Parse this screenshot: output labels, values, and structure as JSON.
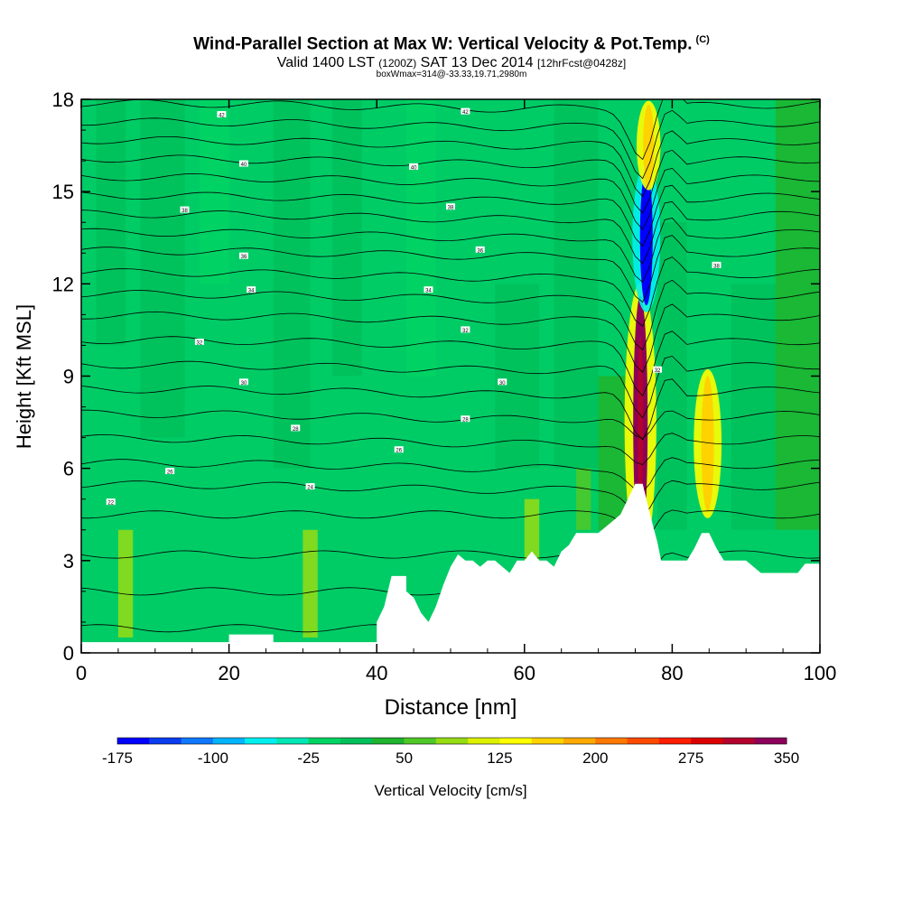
{
  "chart_data": {
    "type": "heatmap",
    "title": "Wind-Parallel Section at Max W: Vertical Velocity & Pot.Temp.",
    "title_mark": "(C)",
    "subtitle_main": "Valid 1400 LST",
    "subtitle_z": "(1200Z)",
    "subtitle_date": "SAT 13 Dec 2014",
    "subtitle_fcst": "[12hrFcst@0428z]",
    "subsubtitle": "boxWmax=314@-33.33,19.71,2980m",
    "xlabel": "Distance [nm]",
    "ylabel": "Height [Kft MSL]",
    "xlim": [
      0,
      100
    ],
    "ylim": [
      0,
      18
    ],
    "xticks": [
      "0",
      "20",
      "40",
      "60",
      "80",
      "100"
    ],
    "yticks": [
      "0",
      "3",
      "6",
      "9",
      "12",
      "15",
      "18"
    ],
    "colorbar": {
      "label": "Vertical Velocity [cm/s]",
      "tick_labels": [
        "-175",
        "-100",
        "-25",
        "50",
        "125",
        "200",
        "275",
        "350"
      ],
      "colors": [
        "#0000ff",
        "#0a3cf0",
        "#0f78ff",
        "#00b4ff",
        "#00f0f0",
        "#00e6b4",
        "#00d464",
        "#00c05a",
        "#1eb42d",
        "#50c828",
        "#96dc14",
        "#dcf000",
        "#ffff00",
        "#ffd200",
        "#ffaa00",
        "#ff7800",
        "#ff4b00",
        "#ff1e00",
        "#dc0000",
        "#b4002d",
        "#8c005a"
      ]
    },
    "background_color": "#00cc66",
    "terrain": [
      [
        0,
        0.35
      ],
      [
        10,
        0.35
      ],
      [
        20,
        0.35
      ],
      [
        20,
        0.6
      ],
      [
        26,
        0.6
      ],
      [
        26,
        0.35
      ],
      [
        40,
        0.35
      ],
      [
        40,
        1.0
      ],
      [
        41,
        1.5
      ],
      [
        42,
        2.5
      ],
      [
        44,
        2.5
      ],
      [
        44,
        2.0
      ],
      [
        45,
        1.8
      ],
      [
        46,
        1.3
      ],
      [
        47,
        1.0
      ],
      [
        48,
        1.5
      ],
      [
        49,
        2.2
      ],
      [
        50,
        2.8
      ],
      [
        51,
        3.2
      ],
      [
        52,
        3.0
      ],
      [
        53,
        3.0
      ],
      [
        54,
        2.8
      ],
      [
        55,
        3.0
      ],
      [
        56,
        3.0
      ],
      [
        57,
        2.8
      ],
      [
        58,
        2.6
      ],
      [
        59,
        3.0
      ],
      [
        60,
        3.0
      ],
      [
        61,
        3.3
      ],
      [
        62,
        3.0
      ],
      [
        63,
        3.0
      ],
      [
        64,
        2.8
      ],
      [
        65,
        3.3
      ],
      [
        66,
        3.5
      ],
      [
        67,
        3.9
      ],
      [
        70,
        3.9
      ],
      [
        72,
        4.3
      ],
      [
        73,
        4.5
      ],
      [
        74,
        5.0
      ],
      [
        75,
        5.5
      ],
      [
        76,
        5.5
      ],
      [
        77,
        4.5
      ],
      [
        78,
        3.6
      ],
      [
        78.5,
        3.0
      ],
      [
        82,
        3.0
      ],
      [
        83,
        3.4
      ],
      [
        84,
        3.9
      ],
      [
        85,
        3.9
      ],
      [
        86,
        3.4
      ],
      [
        87,
        3.0
      ],
      [
        90,
        3.0
      ],
      [
        92,
        2.6
      ],
      [
        97,
        2.6
      ],
      [
        98,
        2.9
      ],
      [
        100,
        2.9
      ]
    ],
    "w_features": [
      {
        "x": 75.7,
        "y": 7.5,
        "value": 314
      },
      {
        "x": 76.5,
        "y": 13.5,
        "value": -175
      },
      {
        "x": 84.8,
        "y": 6.8,
        "value": 150
      },
      {
        "x": 76.8,
        "y": 16.5,
        "value": 150
      }
    ],
    "contour_labels": [
      {
        "x": 19,
        "y": 17.5,
        "text": "42"
      },
      {
        "x": 22,
        "y": 15.9,
        "text": "40"
      },
      {
        "x": 14,
        "y": 14.4,
        "text": "38"
      },
      {
        "x": 22,
        "y": 12.9,
        "text": "36"
      },
      {
        "x": 23,
        "y": 11.8,
        "text": "34"
      },
      {
        "x": 16,
        "y": 10.1,
        "text": "32"
      },
      {
        "x": 22,
        "y": 8.8,
        "text": "30"
      },
      {
        "x": 29,
        "y": 7.3,
        "text": "28"
      },
      {
        "x": 12,
        "y": 5.9,
        "text": "26"
      },
      {
        "x": 31,
        "y": 5.4,
        "text": "24"
      },
      {
        "x": 4,
        "y": 4.9,
        "text": "22"
      },
      {
        "x": 52,
        "y": 17.6,
        "text": "42"
      },
      {
        "x": 45,
        "y": 15.8,
        "text": "40"
      },
      {
        "x": 50,
        "y": 14.5,
        "text": "38"
      },
      {
        "x": 54,
        "y": 13.1,
        "text": "36"
      },
      {
        "x": 47,
        "y": 11.8,
        "text": "34"
      },
      {
        "x": 52,
        "y": 10.5,
        "text": "32"
      },
      {
        "x": 57,
        "y": 8.8,
        "text": "30"
      },
      {
        "x": 52,
        "y": 7.6,
        "text": "28"
      },
      {
        "x": 43,
        "y": 6.6,
        "text": "26"
      },
      {
        "x": 86,
        "y": 12.6,
        "text": "38"
      },
      {
        "x": 78,
        "y": 9.2,
        "text": "32"
      }
    ]
  }
}
